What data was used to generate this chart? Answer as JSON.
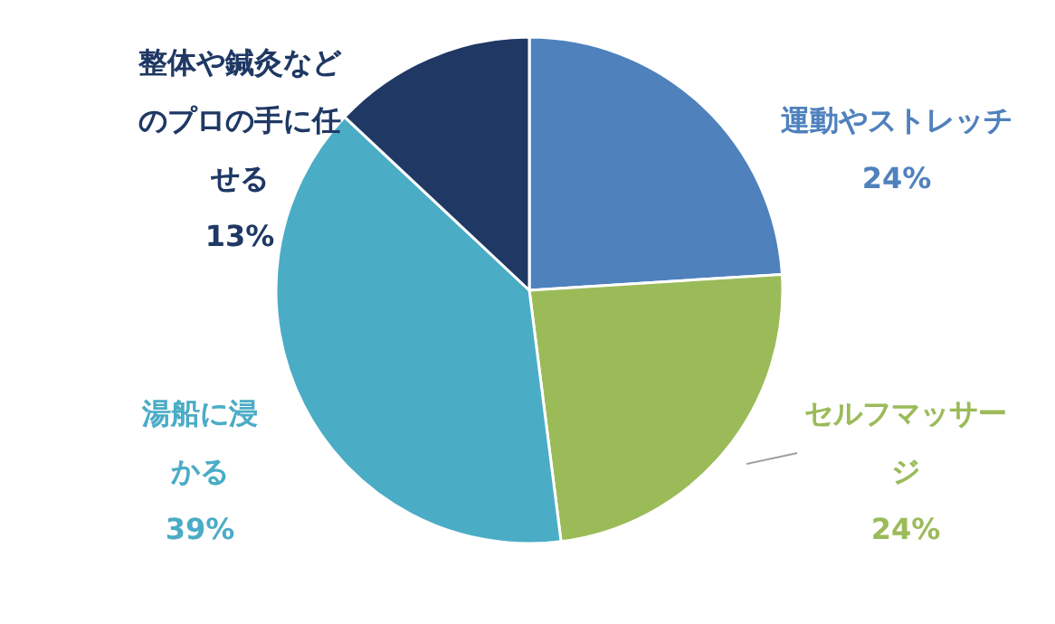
{
  "chart_data": {
    "type": "pie",
    "categories": [
      "運動やストレッチ",
      "セルフマッサージ",
      "湯船に浸かる",
      "整体や鍼灸などのプロの手に任せる"
    ],
    "values": [
      24,
      24,
      39,
      13
    ],
    "colors": [
      "#4f81bd",
      "#9bbb59",
      "#4bacc6",
      "#1f3864"
    ],
    "value_labels": [
      "24%",
      "24%",
      "39%",
      "13%"
    ]
  }
}
